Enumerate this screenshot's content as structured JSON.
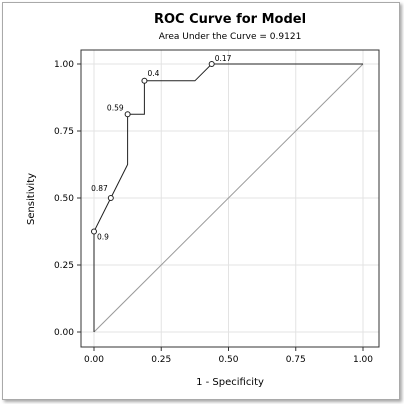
{
  "chart_data": {
    "type": "line",
    "title": "ROC Curve for Model",
    "subtitle": "Area Under the Curve = 0.9121",
    "xlabel": "1 - Specificity",
    "ylabel": "Sensitivity",
    "xlim": [
      0,
      1
    ],
    "ylim": [
      0,
      1
    ],
    "xticks": [
      "0.00",
      "0.25",
      "0.50",
      "0.75",
      "1.00"
    ],
    "yticks": [
      "0.00",
      "0.25",
      "0.50",
      "0.75",
      "1.00"
    ],
    "grid": true,
    "series": [
      {
        "x": [
          0,
          0,
          0,
          0.0625,
          0.125,
          0.125,
          0.1875,
          0.1875,
          0.375,
          0.4375,
          0.4375,
          1.0
        ],
        "y": [
          0,
          0.375,
          0.375,
          0.5,
          0.625,
          0.8125,
          0.8125,
          0.9375,
          0.9375,
          1.0,
          1.0,
          1.0
        ]
      }
    ],
    "reference_line": {
      "x": [
        0,
        1
      ],
      "y": [
        0,
        1
      ]
    },
    "labeled_points": [
      {
        "x": 0.0,
        "y": 0.375,
        "label": "0.9"
      },
      {
        "x": 0.0625,
        "y": 0.5,
        "label": "0.87"
      },
      {
        "x": 0.125,
        "y": 0.8125,
        "label": "0.59"
      },
      {
        "x": 0.1875,
        "y": 0.9375,
        "label": "0.4"
      },
      {
        "x": 0.4375,
        "y": 1.0,
        "label": "0.17"
      }
    ]
  }
}
